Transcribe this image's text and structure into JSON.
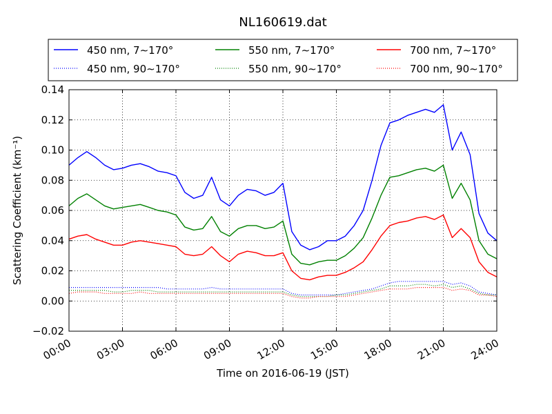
{
  "chart_data": {
    "type": "line",
    "title": "NL160619.dat",
    "xlabel": "Time on 2016-06-19 (JST)",
    "ylabel": "Scattering Coefficient (km⁻¹)",
    "xlim": [
      "00:00",
      "24:00"
    ],
    "ylim": [
      -0.02,
      0.14
    ],
    "xticks": [
      "00:00",
      "03:00",
      "06:00",
      "09:00",
      "12:00",
      "15:00",
      "18:00",
      "21:00",
      "24:00"
    ],
    "yticks": [
      "−0.02",
      "0.00",
      "0.02",
      "0.04",
      "0.06",
      "0.08",
      "0.10",
      "0.12",
      "0.14"
    ],
    "grid": true,
    "legend_position": "top",
    "x_hours": [
      0,
      0.5,
      1,
      1.5,
      2,
      2.5,
      3,
      3.5,
      4,
      4.5,
      5,
      5.5,
      6,
      6.5,
      7,
      7.5,
      8,
      8.5,
      9,
      9.5,
      10,
      10.5,
      11,
      11.5,
      12,
      12.5,
      13,
      13.5,
      14,
      14.5,
      15,
      15.5,
      16,
      16.5,
      17,
      17.5,
      18,
      18.5,
      19,
      19.5,
      20,
      20.5,
      21,
      21.5,
      22,
      22.5,
      23,
      23.5,
      24
    ],
    "series": [
      {
        "name": "450 nm, 7∼170°",
        "color": "#0000ff",
        "style": "solid",
        "values": [
          0.09,
          0.095,
          0.099,
          0.095,
          0.09,
          0.087,
          0.088,
          0.09,
          0.091,
          0.089,
          0.086,
          0.085,
          0.083,
          0.072,
          0.068,
          0.07,
          0.082,
          0.067,
          0.063,
          0.07,
          0.074,
          0.073,
          0.07,
          0.072,
          0.078,
          0.046,
          0.037,
          0.034,
          0.036,
          0.04,
          0.04,
          0.043,
          0.05,
          0.06,
          0.08,
          0.103,
          0.118,
          0.12,
          0.123,
          0.125,
          0.127,
          0.125,
          0.13,
          0.1,
          0.112,
          0.097,
          0.058,
          0.045,
          0.04
        ]
      },
      {
        "name": "550 nm, 7∼170°",
        "color": "#008000",
        "style": "solid",
        "values": [
          0.063,
          0.068,
          0.071,
          0.067,
          0.063,
          0.061,
          0.062,
          0.063,
          0.064,
          0.062,
          0.06,
          0.059,
          0.057,
          0.049,
          0.047,
          0.048,
          0.056,
          0.046,
          0.043,
          0.048,
          0.05,
          0.05,
          0.048,
          0.049,
          0.053,
          0.031,
          0.025,
          0.024,
          0.026,
          0.027,
          0.027,
          0.03,
          0.035,
          0.042,
          0.055,
          0.07,
          0.082,
          0.083,
          0.085,
          0.087,
          0.088,
          0.086,
          0.09,
          0.068,
          0.078,
          0.067,
          0.04,
          0.031,
          0.028
        ]
      },
      {
        "name": "700 nm, 7∼170°",
        "color": "#ff0000",
        "style": "solid",
        "values": [
          0.041,
          0.043,
          0.044,
          0.041,
          0.039,
          0.037,
          0.037,
          0.039,
          0.04,
          0.039,
          0.038,
          0.037,
          0.036,
          0.031,
          0.03,
          0.031,
          0.036,
          0.03,
          0.026,
          0.031,
          0.033,
          0.032,
          0.03,
          0.03,
          0.032,
          0.02,
          0.015,
          0.014,
          0.016,
          0.017,
          0.017,
          0.019,
          0.022,
          0.026,
          0.034,
          0.043,
          0.05,
          0.052,
          0.053,
          0.055,
          0.056,
          0.054,
          0.057,
          0.042,
          0.048,
          0.042,
          0.026,
          0.019,
          0.016
        ]
      },
      {
        "name": "450 nm, 90∼170°",
        "color": "#0000ff",
        "style": "dotted",
        "values": [
          0.009,
          0.009,
          0.009,
          0.009,
          0.009,
          0.009,
          0.009,
          0.009,
          0.009,
          0.009,
          0.009,
          0.008,
          0.008,
          0.008,
          0.008,
          0.008,
          0.009,
          0.008,
          0.008,
          0.008,
          0.008,
          0.008,
          0.008,
          0.008,
          0.008,
          0.005,
          0.004,
          0.004,
          0.004,
          0.004,
          0.004,
          0.005,
          0.006,
          0.007,
          0.008,
          0.01,
          0.012,
          0.013,
          0.013,
          0.013,
          0.013,
          0.013,
          0.013,
          0.011,
          0.012,
          0.01,
          0.006,
          0.005,
          0.004
        ]
      },
      {
        "name": "550 nm, 90∼170°",
        "color": "#008000",
        "style": "dotted",
        "values": [
          0.007,
          0.007,
          0.007,
          0.007,
          0.007,
          0.006,
          0.006,
          0.007,
          0.007,
          0.007,
          0.006,
          0.006,
          0.006,
          0.006,
          0.006,
          0.006,
          0.006,
          0.006,
          0.006,
          0.006,
          0.006,
          0.006,
          0.006,
          0.006,
          0.006,
          0.004,
          0.003,
          0.003,
          0.003,
          0.003,
          0.004,
          0.004,
          0.005,
          0.006,
          0.007,
          0.008,
          0.01,
          0.01,
          0.01,
          0.011,
          0.011,
          0.01,
          0.011,
          0.009,
          0.01,
          0.008,
          0.005,
          0.004,
          0.004
        ]
      },
      {
        "name": "700 nm, 90∼170°",
        "color": "#ff0000",
        "style": "dotted",
        "values": [
          0.005,
          0.006,
          0.006,
          0.006,
          0.005,
          0.005,
          0.005,
          0.005,
          0.006,
          0.005,
          0.005,
          0.005,
          0.005,
          0.005,
          0.005,
          0.005,
          0.005,
          0.005,
          0.005,
          0.005,
          0.005,
          0.005,
          0.005,
          0.005,
          0.005,
          0.003,
          0.002,
          0.002,
          0.003,
          0.003,
          0.003,
          0.003,
          0.004,
          0.005,
          0.006,
          0.007,
          0.008,
          0.008,
          0.008,
          0.009,
          0.009,
          0.009,
          0.009,
          0.007,
          0.008,
          0.007,
          0.004,
          0.004,
          0.003
        ]
      }
    ]
  }
}
